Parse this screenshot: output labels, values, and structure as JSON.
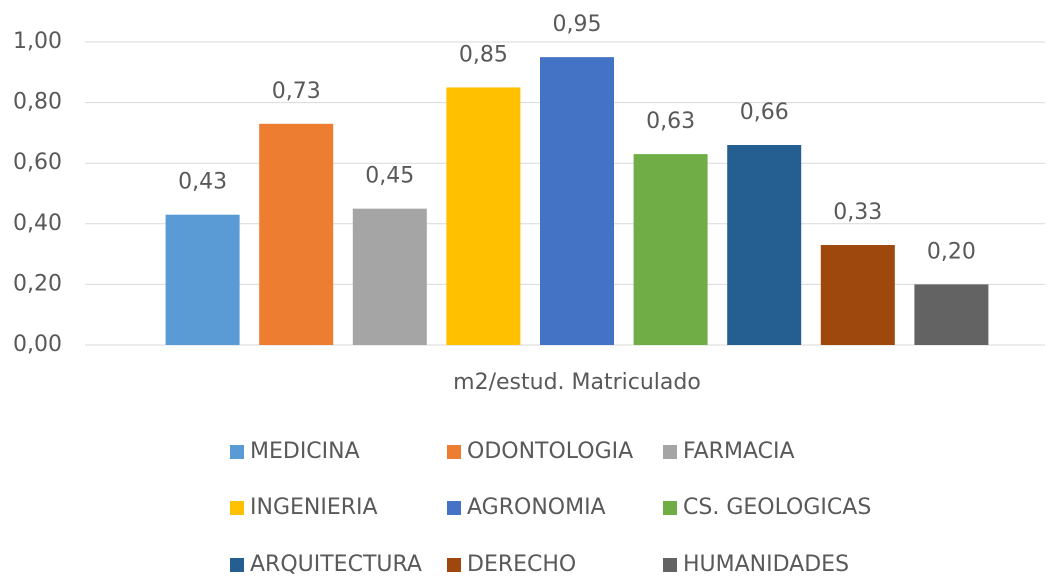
{
  "chart_data": {
    "type": "bar",
    "categories": [
      "m2/estud. Matriculado"
    ],
    "series": [
      {
        "name": "MEDICINA",
        "color": "#5b9bd5",
        "values": [
          0.43
        ],
        "value_labels": [
          "0,43"
        ]
      },
      {
        "name": "ODONTOLOGIA",
        "color": "#ed7d31",
        "values": [
          0.73
        ],
        "value_labels": [
          "0,73"
        ]
      },
      {
        "name": "FARMACIA",
        "color": "#a5a5a5",
        "values": [
          0.45
        ],
        "value_labels": [
          "0,45"
        ]
      },
      {
        "name": "INGENIERIA",
        "color": "#ffc000",
        "values": [
          0.85
        ],
        "value_labels": [
          "0,85"
        ]
      },
      {
        "name": "AGRONOMIA",
        "color": "#4472c4",
        "values": [
          0.95
        ],
        "value_labels": [
          "0,95"
        ]
      },
      {
        "name": "CS. GEOLOGICAS",
        "color": "#70ad47",
        "values": [
          0.63
        ],
        "value_labels": [
          "0,63"
        ]
      },
      {
        "name": "ARQUITECTURA",
        "color": "#255e91",
        "values": [
          0.66
        ],
        "value_labels": [
          "0,66"
        ]
      },
      {
        "name": "DERECHO",
        "color": "#9e480e",
        "values": [
          0.33
        ],
        "value_labels": [
          "0,33"
        ]
      },
      {
        "name": "HUMANIDADES",
        "color": "#636363",
        "values": [
          0.2
        ],
        "value_labels": [
          "0,20"
        ]
      }
    ],
    "ylim": [
      0,
      1
    ],
    "yticks": [
      {
        "value": 0,
        "label": "0,00"
      },
      {
        "value": 0.2,
        "label": "0,20"
      },
      {
        "value": 0.4,
        "label": "0,40"
      },
      {
        "value": 0.6,
        "label": "0,60"
      },
      {
        "value": 0.8,
        "label": "0,80"
      },
      {
        "value": 1,
        "label": "1,00"
      }
    ],
    "grid": true,
    "legend": "bottom"
  }
}
